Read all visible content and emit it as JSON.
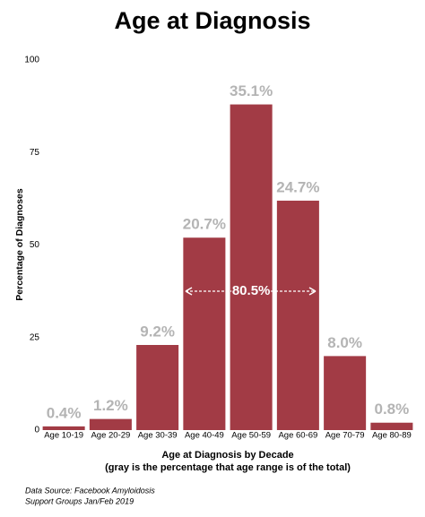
{
  "chart_data": {
    "type": "bar",
    "title": "Age at Diagnosis",
    "xlabel": "Age at Diagnosis by Decade",
    "xlabel_note": "(gray is the percentage that age range is of the total)",
    "ylabel": "Percentage of Diagnoses",
    "categories": [
      "Age 10-19",
      "Age 20-29",
      "Age 30-39",
      "Age 40-49",
      "Age 50-59",
      "Age 60-69",
      "Age 70-79",
      "Age 80-89"
    ],
    "values": [
      1,
      3,
      23,
      52,
      88,
      62,
      20,
      2
    ],
    "share_labels": [
      "0.4%",
      "1.2%",
      "9.2%",
      "20.7%",
      "35.1%",
      "24.7%",
      "8.0%",
      "0.8%"
    ],
    "annotation": "80.5%",
    "color": "#a23b45",
    "ylim": [
      0,
      100
    ],
    "yticks": [
      0,
      25,
      50,
      75,
      100
    ],
    "grid": false,
    "source": [
      "Data Source:  Facebook Amyloidosis",
      "Support Groups Jan/Feb 2019"
    ]
  }
}
